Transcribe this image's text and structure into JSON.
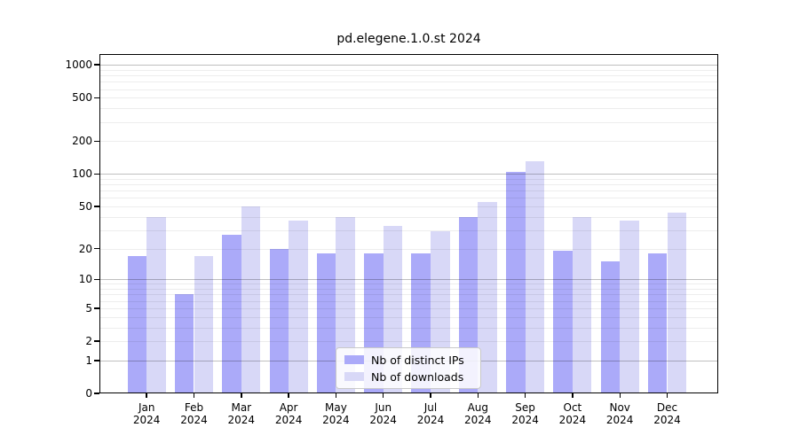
{
  "title": "pd.elegene.1.0.st 2024",
  "chart_data": {
    "type": "bar",
    "title": "pd.elegene.1.0.st 2024",
    "categories": [
      "Jan 2024",
      "Feb 2024",
      "Mar 2024",
      "Apr 2024",
      "May 2024",
      "Jun 2024",
      "Jul 2024",
      "Aug 2024",
      "Sep 2024",
      "Oct 2024",
      "Nov 2024",
      "Dec 2024"
    ],
    "category_months": [
      "Jan",
      "Feb",
      "Mar",
      "Apr",
      "May",
      "Jun",
      "Jul",
      "Aug",
      "Sep",
      "Oct",
      "Nov",
      "Dec"
    ],
    "category_year": "2024",
    "series": [
      {
        "name": "Nb of distinct IPs",
        "color": "#abaaf9",
        "values": [
          17,
          7,
          27,
          20,
          18,
          18,
          18,
          40,
          104,
          19,
          15,
          18
        ]
      },
      {
        "name": "Nb of downloads",
        "color": "#d8d8f7",
        "values": [
          40,
          17,
          50,
          37,
          40,
          33,
          29,
          55,
          131,
          40,
          37,
          44
        ]
      }
    ],
    "yscale": "log1p",
    "ylabel": "",
    "xlabel": "",
    "ylim": [
      0,
      1255
    ],
    "y_tick_values": [
      0,
      1,
      2,
      5,
      10,
      20,
      50,
      100,
      200,
      500,
      1000
    ],
    "y_major_gridlines": [
      1,
      10,
      100,
      1000
    ],
    "grid": true,
    "legend_position": "lower center (inside plot)"
  },
  "colors": {
    "bar_distinct_ips": "#abaaf9",
    "bar_downloads": "#d8d8f7",
    "gridline_major": "#c1c1c1",
    "gridline_minor": "#ededed",
    "spine": "#000000",
    "background": "#ffffff"
  }
}
